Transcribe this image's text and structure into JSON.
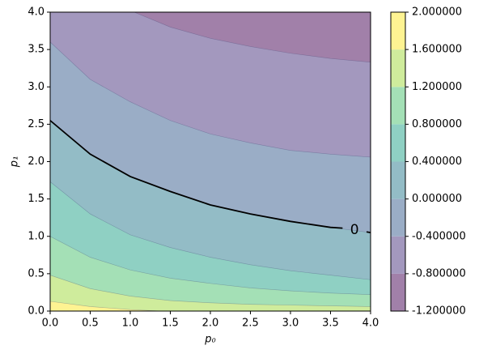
{
  "chart_data": {
    "type": "contourf",
    "xlabel": "p₀",
    "ylabel": "p₁",
    "xlim": [
      0,
      4
    ],
    "ylim": [
      0,
      4
    ],
    "xticks": [
      {
        "value": 0,
        "label": "0.0"
      },
      0.5,
      {
        "value": 1,
        "label": "1.0"
      },
      1.5,
      {
        "value": 2,
        "label": "2.0"
      },
      2.5,
      {
        "value": 3,
        "label": "3.0"
      },
      3.5,
      {
        "value": 4,
        "label": "4.0"
      }
    ],
    "yticks": [
      {
        "value": 0,
        "label": "0.0"
      },
      0.5,
      {
        "value": 1,
        "label": "1.0"
      },
      1.5,
      {
        "value": 2,
        "label": "2.0"
      },
      2.5,
      {
        "value": 3,
        "label": "3.0"
      },
      3.5,
      {
        "value": 4,
        "label": "4.0"
      }
    ],
    "levels": [
      -1.2,
      -0.8,
      -0.4,
      0,
      0.4,
      0.8,
      1.2,
      1.6,
      2.0
    ],
    "colors": [
      "#a180a9",
      "#a398be",
      "#9aadc6",
      "#93bcc6",
      "#8fd0c3",
      "#a4e0b6",
      "#cfec9c",
      "#fef392"
    ],
    "contours": [
      {
        "x": [
          1.05,
          1.5,
          2,
          2.5,
          3,
          3.5,
          4
        ],
        "y": [
          4,
          3.8,
          3.65,
          3.54,
          3.45,
          3.38,
          3.33
        ]
      },
      {
        "x": [
          0,
          0.5,
          1,
          1.5,
          2,
          2.5,
          3,
          3.5,
          4
        ],
        "y": [
          3.6,
          3.1,
          2.8,
          2.55,
          2.37,
          2.25,
          2.15,
          2.1,
          2.06
        ]
      },
      {
        "x": [
          0,
          0.5,
          1,
          1.5,
          2,
          2.5,
          3,
          3.5,
          4
        ],
        "y": [
          2.55,
          2.1,
          1.8,
          1.6,
          1.42,
          1.3,
          1.2,
          1.12,
          1.05
        ]
      },
      {
        "x": [
          0,
          0.5,
          1,
          1.5,
          2,
          2.5,
          3,
          3.5,
          4
        ],
        "y": [
          1.73,
          1.3,
          1.02,
          0.85,
          0.72,
          0.62,
          0.54,
          0.48,
          0.42
        ]
      },
      {
        "x": [
          0,
          0.5,
          1,
          1.5,
          2,
          2.5,
          3,
          3.5,
          4
        ],
        "y": [
          1.0,
          0.72,
          0.55,
          0.44,
          0.37,
          0.31,
          0.27,
          0.24,
          0.22
        ]
      },
      {
        "x": [
          0,
          0.5,
          1,
          1.5,
          2,
          2.5,
          3,
          3.5,
          4
        ],
        "y": [
          0.48,
          0.3,
          0.2,
          0.14,
          0.11,
          0.09,
          0.08,
          0.07,
          0.06
        ]
      },
      {
        "x": [
          0,
          0.5,
          1,
          1.4
        ],
        "y": [
          0.13,
          0.06,
          0.02,
          0
        ]
      }
    ],
    "line_contour": {
      "label": "0",
      "color": "#000000",
      "x": [
        0,
        0.5,
        1,
        1.5,
        2,
        2.5,
        3,
        3.5,
        3.65,
        3.8,
        3.95,
        4
      ],
      "y": [
        2.55,
        2.1,
        1.8,
        1.6,
        1.42,
        1.3,
        1.2,
        1.12,
        1.11,
        null,
        1.06,
        1.05
      ]
    },
    "colorbar_ticks": [
      {
        "value": -1.2,
        "label": "-1.200000"
      },
      {
        "value": -0.8,
        "label": "-0.800000"
      },
      {
        "value": -0.4,
        "label": "-0.400000"
      },
      {
        "value": 0,
        "label": "0.000000"
      },
      {
        "value": 0.4,
        "label": "0.400000"
      },
      {
        "value": 0.8,
        "label": "0.800000"
      },
      {
        "value": 1.2,
        "label": "1.200000"
      },
      {
        "value": 1.6,
        "label": "1.600000"
      },
      {
        "value": 2.0,
        "label": "2.000000"
      }
    ]
  }
}
